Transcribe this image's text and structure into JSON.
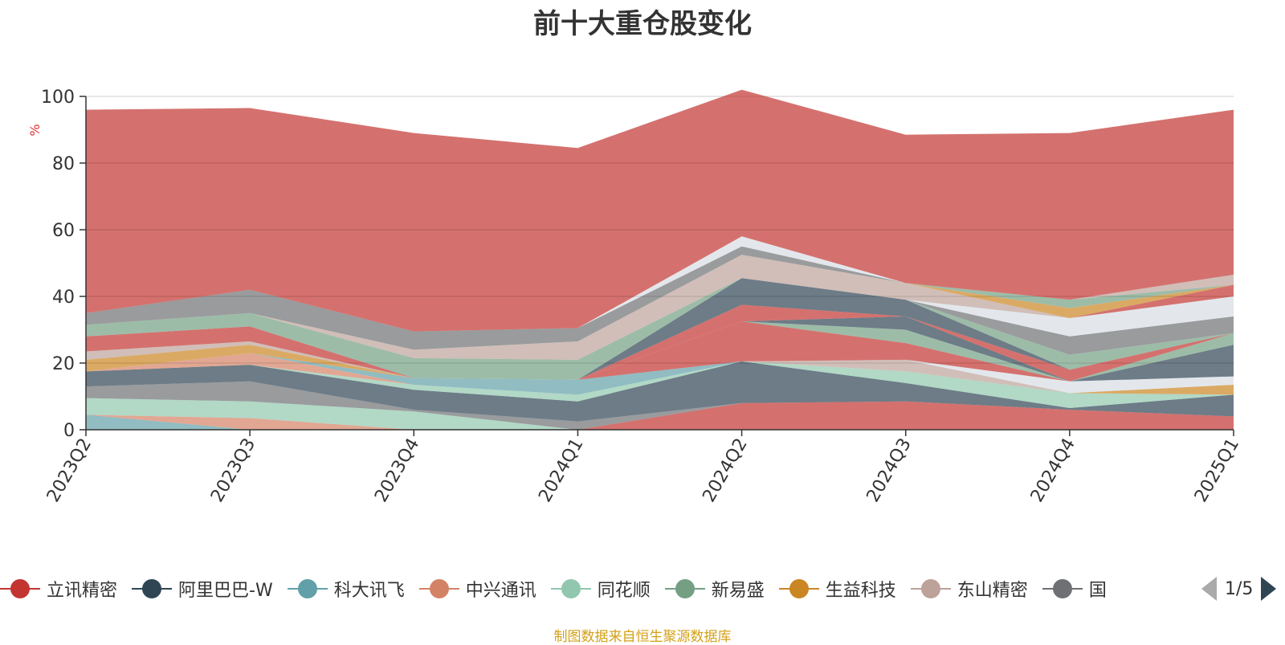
{
  "title": "前十大重仓股变化",
  "source_note": "制图数据来自恒生聚源数据库",
  "legend": {
    "items": [
      {
        "label": "立讯精密",
        "color": "#c23531"
      },
      {
        "label": "阿里巴巴-W",
        "color": "#2f4554"
      },
      {
        "label": "科大讯飞",
        "color": "#61a0a8"
      },
      {
        "label": "中兴通讯",
        "color": "#d48265"
      },
      {
        "label": "同花顺",
        "color": "#91c7ae"
      },
      {
        "label": "新易盛",
        "color": "#749f83"
      },
      {
        "label": "生益科技",
        "color": "#ca8622"
      },
      {
        "label": "东山精密",
        "color": "#bda29a"
      },
      {
        "label": "国",
        "color": "#6e7074"
      }
    ],
    "page_text": "1/5"
  },
  "chart_data": {
    "type": "area",
    "stacked": true,
    "title": "前十大重仓股变化",
    "ylabel": "%",
    "ylim": [
      0,
      100
    ],
    "yticks": [
      0,
      20,
      40,
      60,
      80,
      100
    ],
    "categories": [
      "2023Q2",
      "2023Q3",
      "2023Q4",
      "2024Q1",
      "2024Q2",
      "2024Q3",
      "2024Q4",
      "2025Q1"
    ],
    "grid": true,
    "series": [
      {
        "color": "#61a0a8",
        "values": [
          4.5,
          0,
          0,
          0,
          0,
          0,
          0,
          0
        ]
      },
      {
        "color": "#d48265",
        "values": [
          0,
          3.5,
          0,
          0,
          0,
          0,
          0,
          0
        ]
      },
      {
        "color": "#91c7ae",
        "values": [
          5,
          5,
          5.5,
          0,
          0,
          0,
          0,
          0
        ]
      },
      {
        "color": "#c23531",
        "values": [
          0,
          0,
          0,
          0,
          8,
          8.5,
          6,
          4
        ]
      },
      {
        "color": "#6e7074",
        "values": [
          3.5,
          6,
          0.5,
          2.5,
          0,
          0,
          0,
          0
        ]
      },
      {
        "color": "#749f83",
        "values": [
          0,
          0,
          0,
          0,
          0,
          0,
          0,
          0
        ]
      },
      {
        "color": "#2f4554",
        "values": [
          4.5,
          5,
          6,
          6,
          12.5,
          5.5,
          0.5,
          6.5
        ]
      },
      {
        "color": "#91c7ae",
        "values": [
          0,
          0,
          1.5,
          2,
          0,
          3.5,
          4.5,
          0
        ]
      },
      {
        "color": "#ca8622",
        "values": [
          0,
          0,
          0,
          0,
          0,
          0,
          0,
          3
        ]
      },
      {
        "color": "#bda29a",
        "values": [
          0,
          0,
          0,
          0,
          0,
          3.5,
          0,
          0
        ]
      },
      {
        "color": "#d7dde4",
        "values": [
          0,
          0,
          0,
          0,
          0,
          0,
          3.5,
          2.5
        ]
      },
      {
        "color": "#d48265",
        "values": [
          0,
          3.5,
          0,
          0,
          0,
          0,
          0,
          0
        ]
      },
      {
        "color": "#61a0a8",
        "values": [
          0,
          0,
          2,
          4.5,
          0,
          0,
          0,
          0
        ]
      },
      {
        "color": "#c23531",
        "values": [
          0,
          0,
          0,
          0,
          12,
          5,
          0,
          0
        ]
      },
      {
        "color": "#749f83",
        "values": [
          0,
          0,
          0,
          0,
          0,
          4,
          0,
          0
        ]
      },
      {
        "color": "#2f4554",
        "values": [
          0,
          0,
          0,
          0,
          0,
          4,
          0,
          9.5
        ]
      },
      {
        "color": "#749f83",
        "values": [
          0,
          0,
          0,
          0,
          0,
          0,
          0,
          3.5
        ]
      },
      {
        "color": "#c23531",
        "values": [
          0,
          0,
          0,
          0,
          0,
          0,
          0,
          0
        ]
      },
      {
        "color": "#749f83",
        "values": [
          0,
          0,
          0,
          0,
          0,
          0,
          0,
          0
        ]
      },
      {
        "color": "#6e7074",
        "values": [
          0,
          0,
          0,
          0,
          0,
          0,
          0,
          0
        ]
      },
      {
        "color": "#91c7ae",
        "values": [
          0,
          0,
          0,
          0,
          0,
          0,
          0,
          0
        ]
      },
      {
        "color": "#c23531",
        "values": [
          0,
          0,
          0,
          0,
          5,
          0,
          3.5,
          0
        ]
      },
      {
        "color": "#2f4554",
        "values": [
          0,
          0,
          0,
          0,
          8,
          5,
          0,
          0
        ]
      },
      {
        "color": "#749f83",
        "values": [
          0,
          0,
          0,
          0,
          0,
          0,
          4.5,
          0
        ]
      },
      {
        "color": "#6e7074",
        "values": [
          0,
          0,
          0,
          0,
          0,
          0,
          5.5,
          5
        ]
      },
      {
        "color": "#d7dde4",
        "values": [
          0,
          0,
          0,
          0,
          0,
          0,
          5.5,
          6
        ]
      },
      {
        "color": "#c23531",
        "values": [
          0,
          0,
          0,
          0,
          0,
          0,
          0,
          3.5
        ]
      },
      {
        "color": "#ca8622",
        "values": [
          3.5,
          2.5,
          0,
          0,
          0,
          0,
          0,
          0
        ]
      },
      {
        "color": "#91c7ae",
        "values": [
          0,
          0,
          0,
          0,
          0,
          0,
          0,
          0
        ]
      },
      {
        "color": "#bda29a",
        "values": [
          2.5,
          1,
          0,
          0,
          0,
          0,
          0,
          0
        ]
      },
      {
        "color": "#c23531",
        "values": [
          4.5,
          4.5,
          0,
          0,
          0,
          0,
          0,
          0
        ]
      },
      {
        "color": "#749f83",
        "values": [
          3.5,
          4,
          6,
          6,
          0,
          0,
          0,
          0
        ]
      },
      {
        "color": "#bda29a",
        "values": [
          0,
          0,
          2.5,
          5.5,
          7,
          5,
          0,
          0
        ]
      },
      {
        "color": "#6e7074",
        "values": [
          3.5,
          7,
          5.5,
          4,
          2.5,
          0,
          0,
          0
        ]
      },
      {
        "color": "#2f4554",
        "values": [
          0,
          0,
          0,
          0,
          0,
          0,
          0,
          0
        ]
      },
      {
        "color": "#ca8622",
        "values": [
          0,
          0,
          0,
          0,
          0,
          0,
          3,
          0
        ]
      },
      {
        "color": "#749f83",
        "values": [
          0,
          0,
          0,
          0,
          0,
          0,
          2.5,
          0
        ]
      },
      {
        "color": "#d7dde4",
        "values": [
          0,
          0,
          0,
          0,
          3,
          0,
          0,
          0
        ]
      },
      {
        "color": "#bda29a",
        "values": [
          0,
          0,
          0,
          0,
          0,
          0,
          0,
          3
        ]
      },
      {
        "color": "#c23531",
        "values": [
          61,
          54.5,
          59.5,
          54,
          44,
          44.5,
          50,
          49.5
        ]
      }
    ]
  }
}
